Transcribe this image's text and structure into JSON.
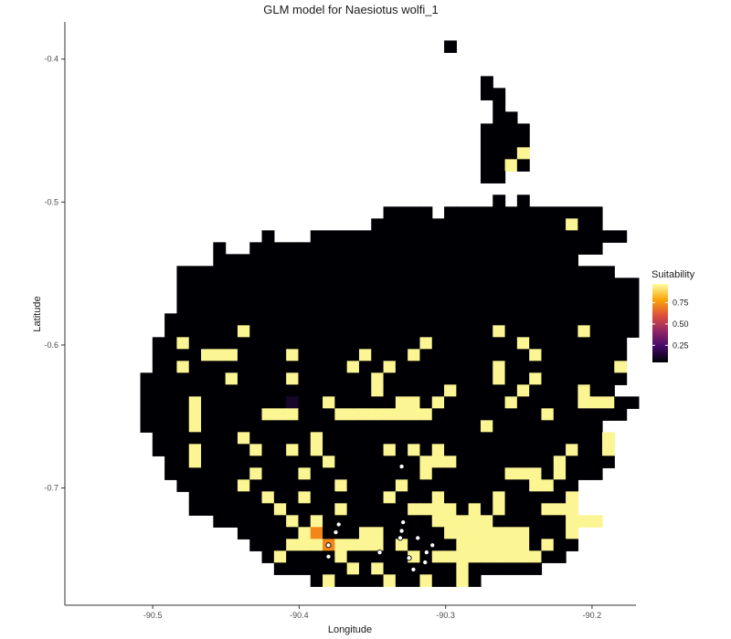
{
  "chart_data": {
    "type": "heatmap",
    "title": "GLM model for Naesiotus wolfi_1",
    "xlabel": "Longitude",
    "ylabel": "Latitude",
    "xlim": [
      -90.56,
      -90.17
    ],
    "ylim": [
      -0.782,
      -0.374
    ],
    "x_ticks": [
      -90.5,
      -90.4,
      -90.3,
      -90.2
    ],
    "x_tick_labels": [
      "-90.5",
      "-90.4",
      "-90.3",
      "-90.2"
    ],
    "y_ticks": [
      -0.4,
      -0.5,
      -0.6,
      -0.7
    ],
    "y_tick_labels": [
      "-0.4",
      "-0.5",
      "-0.6",
      "-0.7"
    ],
    "grid": false,
    "legend": {
      "title": "Suitability",
      "position": "right",
      "range": [
        0.05,
        0.97
      ],
      "ticks": [
        0.25,
        0.5,
        0.75
      ],
      "tick_labels": [
        "0.25",
        "0.50",
        "0.75"
      ],
      "palette": [
        "#000004",
        "#420a68",
        "#932667",
        "#dd513a",
        "#fca50a",
        "#fcffa4"
      ]
    },
    "grid_meta": {
      "x0": -90.55,
      "dx": 0.0083,
      "y_top": -0.387,
      "dy": 0.0083,
      "ncols": 45,
      "nrows": 46,
      "legend_key": {
        "#": 0.05,
        ".": 0.95,
        "o": 0.72,
        "p": 0.22,
        "d": 0.12
      }
    },
    "rows": [
      "                              #              ",
      "                                             ",
      "                                             ",
      "                                 #           ",
      "                                 ##          ",
      "                                  #          ",
      "                                  ##         ",
      "                                 ####        ",
      "                                 ####        ",
      "                                 ###.        ",
      "                                 ##.#        ",
      "                                 ##          ",
      "                                             ",
      "                                  # #        ",
      "                         #### #############  ",
      "                        ################.##  ",
      "               #   ##########################",
      "           #  #############################  ",
      "           ##############################    ",
      "        ####################################  ",
      "        ######################################",
      "        ######################################",
      "        ######################################",
      "       #######################################",
      "       ######.####################.######.####",
      "      ##.###################.#######.########",
      "      ####...####.#####.###.#########.#######",
      "      ##.#############.##.########.#########.",
      "     #######.####.######.#########.##.####### ",
      "     ###################.#####.#####.####.##  ",
      "     ####.#######d##.#####..#.#####.#####...## ",
      "     ####.#####...###........#########.######  ",
      "     ####.#######################.#########    ",
      "      #######.#####.#######################.   ",
      "      ###.####.##.#.#####.#.#.##########.##.   ",
      "       ##.##########.#######...########.####   ",
      "       #######.###.#########.######...#.###    ",
      "        #####.#######.####.##########..##      ",
      "         ######.##.######.###.####.#####.      ",
      "         #######.####.#####....#.#.###...      ",
      "           ######.#.#########.....######...    ",
      "             #####.o###..#####.......###.      ",
      "              ###...o....#.####......#.##      ",
      "               #.####.#####.#.........##       ",
      "                ######.#.######.######         ",
      "                   #.####.##.##.#              "
    ],
    "occurrences": [
      {
        "x": -90.375,
        "y": -0.731
      },
      {
        "x": -90.373,
        "y": -0.7255
      },
      {
        "x": -90.38,
        "y": -0.74
      },
      {
        "x": -90.38,
        "y": -0.748
      },
      {
        "x": -90.345,
        "y": -0.745
      },
      {
        "x": -90.329,
        "y": -0.724
      },
      {
        "x": -90.33,
        "y": -0.73
      },
      {
        "x": -90.331,
        "y": -0.735
      },
      {
        "x": -90.319,
        "y": -0.735
      },
      {
        "x": -90.325,
        "y": -0.749
      },
      {
        "x": -90.322,
        "y": -0.757
      },
      {
        "x": -90.313,
        "y": -0.745
      },
      {
        "x": -90.309,
        "y": -0.74
      },
      {
        "x": -90.314,
        "y": -0.752
      },
      {
        "x": -90.33,
        "y": -0.685
      }
    ]
  }
}
